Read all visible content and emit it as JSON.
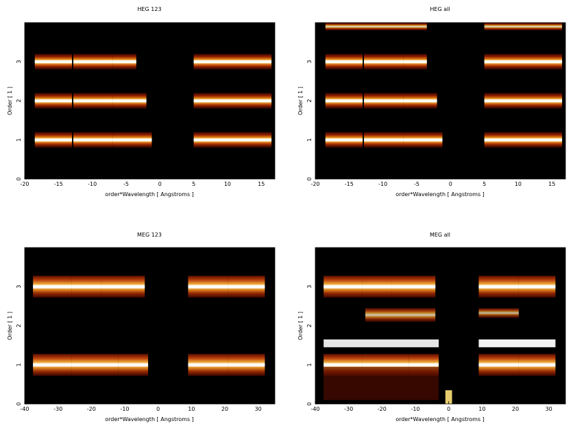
{
  "chart_data": [
    {
      "type": "heatmap",
      "title": "HEG 123",
      "xlabel": "order*Wavelength [ Angstroms ]",
      "ylabel": "Order [ 1 ]",
      "xlim": [
        -20,
        17
      ],
      "ylim": [
        0,
        4
      ],
      "xticks": [
        -20,
        -15,
        -10,
        -5,
        0,
        5,
        10,
        15
      ],
      "yticks": [
        0,
        1,
        2,
        3
      ],
      "colormap": [
        "#000000",
        "#5a0a00",
        "#b32a00",
        "#e8770a",
        "#ffd24a",
        "#ffffff"
      ],
      "bands": [
        {
          "order": 3,
          "segments": [
            [
              -18.5,
              -13
            ],
            [
              -12.8,
              -7
            ],
            [
              -7,
              -3.5
            ],
            [
              5,
              16.5
            ]
          ]
        },
        {
          "order": 2,
          "segments": [
            [
              -18.5,
              -13
            ],
            [
              -12.8,
              -7
            ],
            [
              -7,
              -2
            ],
            [
              5,
              16.5
            ]
          ]
        },
        {
          "order": 1,
          "segments": [
            [
              -18.5,
              -13
            ],
            [
              -12.8,
              -7
            ],
            [
              -7,
              -1.2
            ],
            [
              5,
              16.5
            ]
          ]
        }
      ]
    },
    {
      "type": "heatmap",
      "title": "HEG all",
      "xlabel": "order*Wavelength [ Angstroms ]",
      "ylabel": "Order [ 1 ]",
      "xlim": [
        -20,
        17
      ],
      "ylim": [
        0,
        4
      ],
      "xticks": [
        -20,
        -15,
        -10,
        -5,
        0,
        5,
        10,
        15
      ],
      "yticks": [
        0,
        1,
        2,
        3
      ],
      "colormap": [
        "#000000",
        "#5a0a00",
        "#b32a00",
        "#e8770a",
        "#ffd24a",
        "#ffffff"
      ],
      "bands": [
        {
          "order": 3,
          "segments": [
            [
              -18.5,
              -13
            ],
            [
              -12.8,
              -7
            ],
            [
              -7,
              -3.5
            ],
            [
              5,
              16.5
            ]
          ]
        },
        {
          "order": 2,
          "segments": [
            [
              -18.5,
              -13
            ],
            [
              -12.8,
              -7
            ],
            [
              -7,
              -2
            ],
            [
              5,
              16.5
            ]
          ]
        },
        {
          "order": 1,
          "segments": [
            [
              -18.5,
              -13
            ],
            [
              -12.8,
              -7
            ],
            [
              -7,
              -1.2
            ],
            [
              5,
              16.5
            ]
          ]
        }
      ]
    },
    {
      "type": "heatmap",
      "title": "MEG 123",
      "xlabel": "order*Wavelength [ Angstroms ]",
      "ylabel": "Order [ 1 ]",
      "xlim": [
        -40,
        35
      ],
      "ylim": [
        0,
        4
      ],
      "xticks": [
        -40,
        -30,
        -20,
        -10,
        0,
        10,
        20,
        30
      ],
      "yticks": [
        0,
        1,
        2,
        3
      ],
      "colormap": [
        "#000000",
        "#5a0a00",
        "#b32a00",
        "#e8770a",
        "#ffd24a",
        "#ffffff"
      ],
      "bands": [
        {
          "order": 3,
          "segments": [
            [
              -37.5,
              -26
            ],
            [
              -26,
              -17
            ],
            [
              -17,
              -4
            ]
          ]
        },
        {
          "order": 3,
          "segments": [
            [
              9,
              21
            ],
            [
              21,
              32
            ]
          ]
        },
        {
          "order": 1,
          "segments": [
            [
              -37.5,
              -26
            ],
            [
              -26,
              -12
            ],
            [
              -12,
              -3
            ]
          ]
        },
        {
          "order": 1,
          "segments": [
            [
              9,
              21
            ],
            [
              21,
              32
            ]
          ]
        }
      ]
    },
    {
      "type": "heatmap",
      "title": "MEG all",
      "xlabel": "order*Wavelength [ Angstroms ]",
      "ylabel": "Order [ 1 ]",
      "xlim": [
        -40,
        35
      ],
      "ylim": [
        0,
        4
      ],
      "xticks": [
        -40,
        -30,
        -20,
        -10,
        0,
        10,
        20,
        30
      ],
      "yticks": [
        0,
        1,
        2,
        3
      ],
      "colormap": [
        "#000000",
        "#5a0a00",
        "#b32a00",
        "#e8770a",
        "#ffd24a",
        "#ffffff"
      ],
      "bands": [
        {
          "order": 3,
          "segments": [
            [
              -37.5,
              -26
            ],
            [
              -26,
              -17
            ],
            [
              -17,
              -4
            ]
          ]
        },
        {
          "order": 3,
          "segments": [
            [
              9,
              21
            ],
            [
              21,
              32
            ]
          ]
        },
        {
          "order": 1,
          "segments": [
            [
              -37.5,
              -26
            ],
            [
              -26,
              -12
            ],
            [
              -12,
              -3
            ]
          ]
        },
        {
          "order": 1,
          "segments": [
            [
              9,
              21
            ],
            [
              21,
              32
            ]
          ]
        }
      ]
    }
  ]
}
